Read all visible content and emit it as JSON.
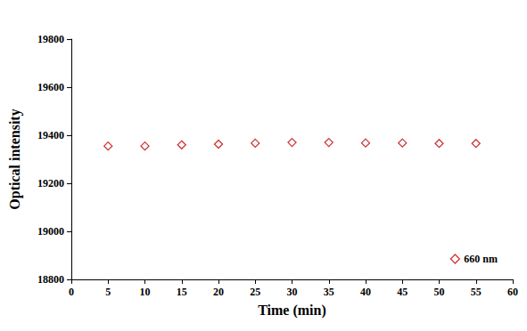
{
  "chart_data": {
    "type": "scatter",
    "x_label": "Time (min)",
    "y_label": "Optical intensity",
    "series": [
      {
        "name": "660 nm",
        "color": "#c00000",
        "marker": "diamond",
        "x": [
          5,
          10,
          15,
          20,
          25,
          30,
          35,
          40,
          45,
          50,
          55
        ],
        "values": [
          19355,
          19355,
          19360,
          19363,
          19367,
          19370,
          19370,
          19368,
          19368,
          19366,
          19366
        ]
      }
    ],
    "xlim": [
      0,
      60
    ],
    "xticks": [
      0,
      5,
      10,
      15,
      20,
      25,
      30,
      35,
      40,
      45,
      50,
      55,
      60
    ],
    "ylim": [
      18800,
      19800
    ],
    "yticks": [
      18800,
      19000,
      19200,
      19400,
      19600,
      19800
    ],
    "grid": false,
    "legend": "lower right"
  }
}
